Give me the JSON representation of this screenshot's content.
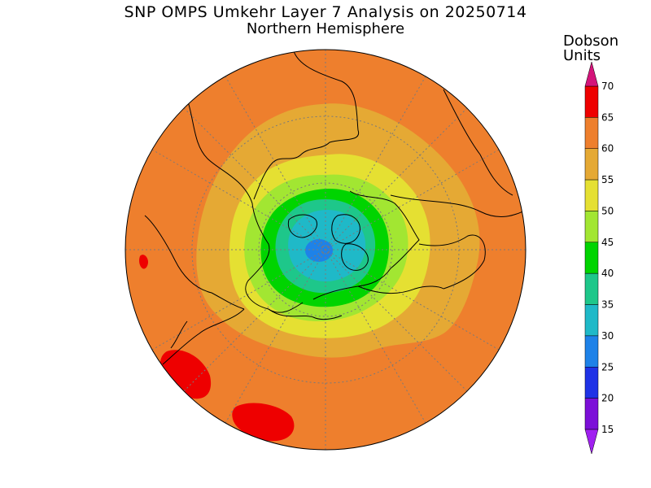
{
  "chart_data": {
    "type": "heatmap",
    "title": "SNP OMPS Umkehr Layer 7 Analysis on 20250714",
    "subtitle": "Northern Hemisphere",
    "colorbar": {
      "label_line1": "Dobson",
      "label_line2": "Units",
      "ticks": [
        "70",
        "65",
        "60",
        "55",
        "50",
        "45",
        "40",
        "35",
        "30",
        "25",
        "20",
        "15"
      ],
      "levels": [
        15,
        20,
        25,
        30,
        35,
        40,
        45,
        50,
        55,
        60,
        65,
        70
      ],
      "bands": [
        {
          "range": [
            65,
            70
          ],
          "color": "#ee0000"
        },
        {
          "range": [
            60,
            65
          ],
          "color": "#ee7f2d"
        },
        {
          "range": [
            55,
            60
          ],
          "color": "#e5a934"
        },
        {
          "range": [
            50,
            55
          ],
          "color": "#e5e032"
        },
        {
          "range": [
            45,
            50
          ],
          "color": "#a2e632"
        },
        {
          "range": [
            40,
            45
          ],
          "color": "#00d400"
        },
        {
          "range": [
            35,
            40
          ],
          "color": "#1ec78a"
        },
        {
          "range": [
            30,
            35
          ],
          "color": "#1fb9c8"
        },
        {
          "range": [
            25,
            30
          ],
          "color": "#1e82e8"
        },
        {
          "range": [
            20,
            25
          ],
          "color": "#1f32e6"
        },
        {
          "range": [
            15,
            20
          ],
          "color": "#7c0fd8"
        }
      ],
      "over_color": "#d4147a",
      "under_color": "#a020f0"
    },
    "map": {
      "projection": "north polar stereographic",
      "field_min_value": 30,
      "field_max_value": 70
    }
  }
}
